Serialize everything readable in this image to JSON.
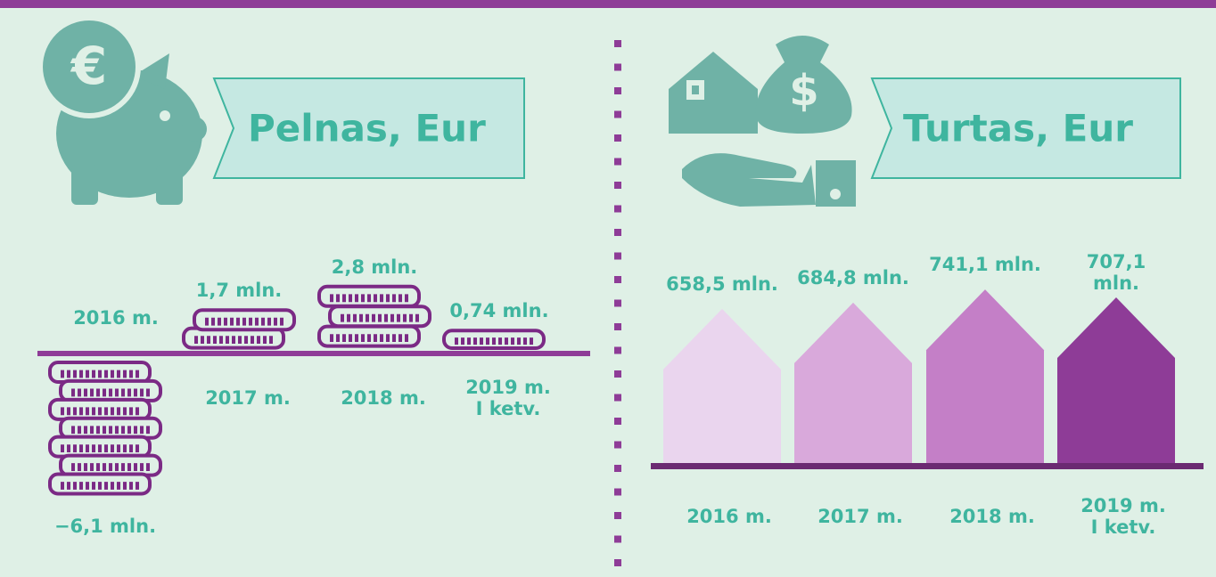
{
  "chart_data": [
    {
      "type": "coin-stack",
      "title": "Pelnas, Eur",
      "categories": [
        "2016 m.",
        "2017 m.",
        "2018 m.",
        "2019 m.\nI ketv."
      ],
      "values": [
        -6.1,
        1.7,
        2.8,
        0.74
      ],
      "value_labels": [
        "−6,1 mln.",
        "1,7 mln.",
        "2,8 mln.",
        "0,74 mln."
      ],
      "color": "#7b2a85"
    },
    {
      "type": "house-bar",
      "title": "Turtas, Eur",
      "categories": [
        "2016 m.",
        "2017 m.",
        "2018 m.",
        "2019 m.\nI ketv."
      ],
      "values": [
        658.5,
        684.8,
        741.1,
        707.1
      ],
      "value_labels": [
        "658,5 mln.",
        "684,8 mln.",
        "741,1 mln.",
        "707,1 mln."
      ],
      "colors": [
        "#ead5ee",
        "#d9a9db",
        "#c47fc7",
        "#8e3c97"
      ]
    }
  ]
}
